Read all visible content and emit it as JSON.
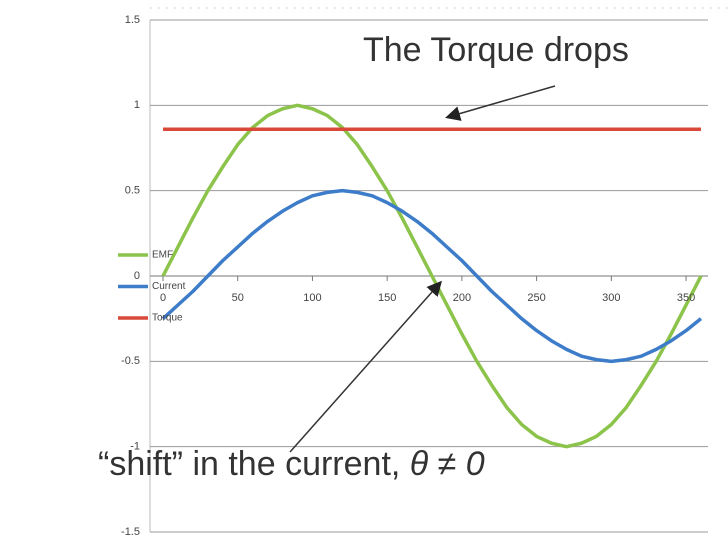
{
  "chart_data": {
    "type": "line",
    "x": [
      0,
      10,
      20,
      30,
      40,
      50,
      60,
      70,
      80,
      90,
      100,
      110,
      120,
      130,
      140,
      150,
      160,
      170,
      180,
      190,
      200,
      210,
      220,
      230,
      240,
      250,
      260,
      270,
      280,
      290,
      300,
      310,
      320,
      330,
      340,
      350,
      360
    ],
    "series": [
      {
        "name": "EMF",
        "color": "#8cc34a",
        "values": [
          0,
          0.17,
          0.34,
          0.5,
          0.64,
          0.77,
          0.87,
          0.94,
          0.98,
          1,
          0.98,
          0.94,
          0.87,
          0.77,
          0.64,
          0.5,
          0.34,
          0.17,
          0,
          -0.17,
          -0.34,
          -0.5,
          -0.64,
          -0.77,
          -0.87,
          -0.94,
          -0.98,
          -1,
          -0.98,
          -0.94,
          -0.87,
          -0.77,
          -0.64,
          -0.5,
          -0.34,
          -0.17,
          0
        ]
      },
      {
        "name": "Current",
        "color": "#3d7cc9",
        "values": [
          -0.25,
          -0.17,
          -0.09,
          0,
          0.09,
          0.17,
          0.25,
          0.32,
          0.38,
          0.43,
          0.47,
          0.49,
          0.5,
          0.49,
          0.47,
          0.43,
          0.38,
          0.32,
          0.25,
          0.17,
          0.09,
          0,
          -0.09,
          -0.17,
          -0.25,
          -0.32,
          -0.38,
          -0.43,
          -0.47,
          -0.49,
          -0.5,
          -0.49,
          -0.47,
          -0.43,
          -0.38,
          -0.32,
          -0.25
        ]
      },
      {
        "name": "Torque",
        "color": "#d9493a",
        "values": [
          0.86,
          0.86,
          0.86,
          0.86,
          0.86,
          0.86,
          0.86,
          0.86,
          0.86,
          0.86,
          0.86,
          0.86,
          0.86,
          0.86,
          0.86,
          0.86,
          0.86,
          0.86,
          0.86,
          0.86,
          0.86,
          0.86,
          0.86,
          0.86,
          0.86,
          0.86,
          0.86,
          0.86,
          0.86,
          0.86,
          0.86,
          0.86,
          0.86,
          0.86,
          0.86,
          0.86,
          0.86
        ]
      }
    ],
    "xlim": [
      0,
      360
    ],
    "xticks": [
      0,
      50,
      100,
      150,
      200,
      250,
      300,
      350
    ],
    "ylim": [
      -1.5,
      1.5
    ],
    "yticks": [
      1.5,
      1,
      0.5,
      0,
      -0.5,
      -1,
      -1.5
    ],
    "grid": true,
    "legend": "left",
    "annotations": [
      {
        "text": "The Torque drops"
      },
      {
        "text": "“shift” in the current, ",
        "math": "θ ≠ 0"
      }
    ]
  }
}
